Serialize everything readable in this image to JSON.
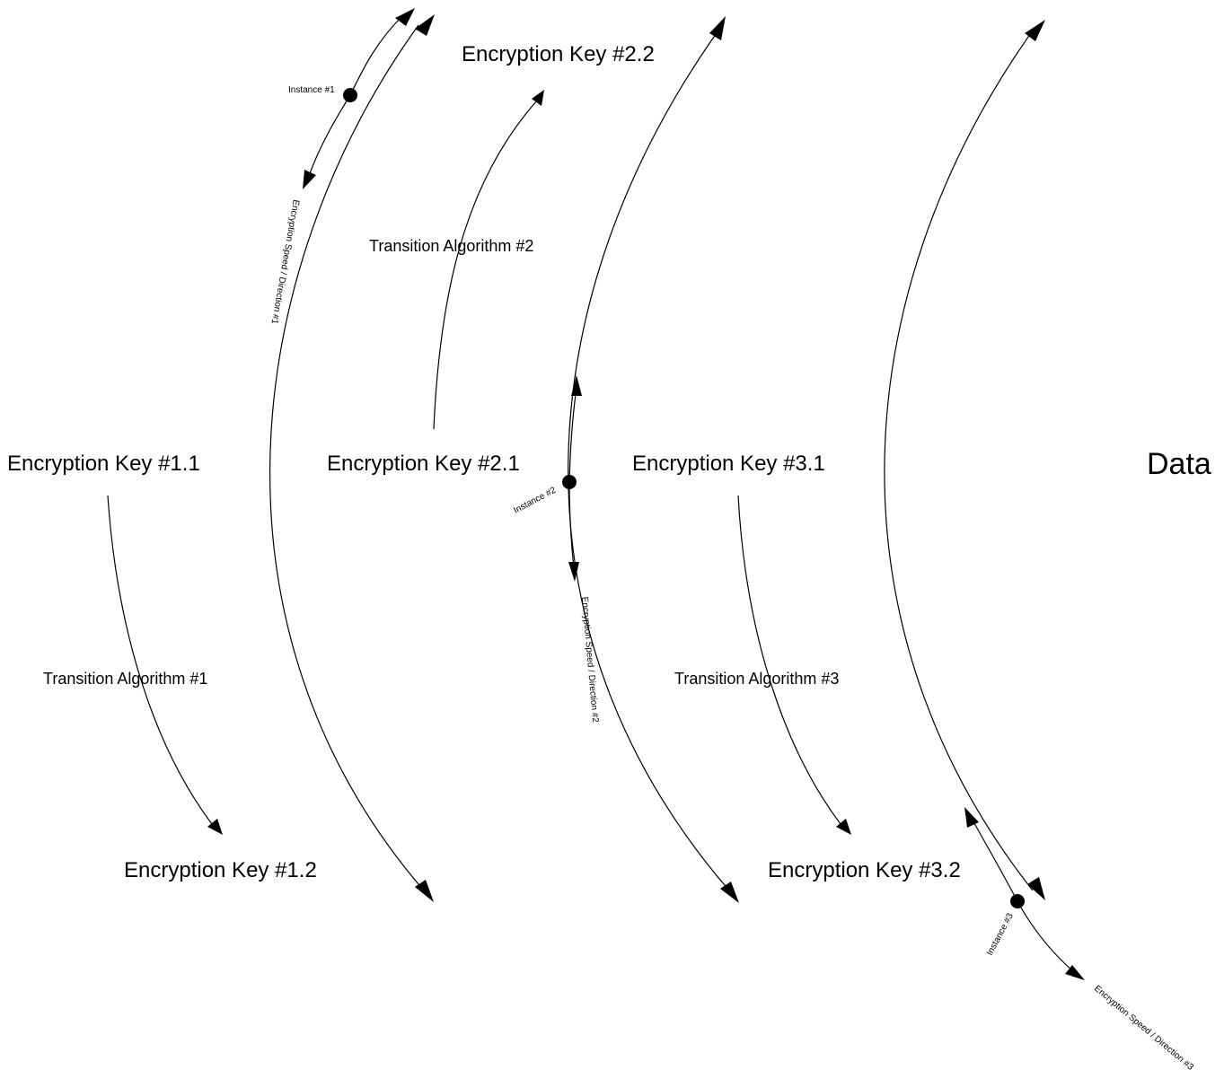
{
  "colors": {
    "line": "#000000",
    "background": "#ffffff"
  },
  "keys": {
    "k11": "Encryption Key #1.1",
    "k12": "Encryption Key #1.2",
    "k21": "Encryption Key #2.1",
    "k22": "Encryption Key #2.2",
    "k31": "Encryption Key #3.1",
    "k32": "Encryption Key #3.2"
  },
  "algorithms": {
    "a1": "Transition Algorithm #1",
    "a2": "Transition Algorithm #2",
    "a3": "Transition Algorithm #3"
  },
  "instances": {
    "i1": "Instance #1",
    "i2": "Instance #2",
    "i3": "Instance #3"
  },
  "speeds": {
    "s1": "Encryption Speed / Direction #1",
    "s2": "Encryption Speed / Direction #2",
    "s3": "Encryption Speed / Direction #3"
  },
  "data_label": "Data"
}
